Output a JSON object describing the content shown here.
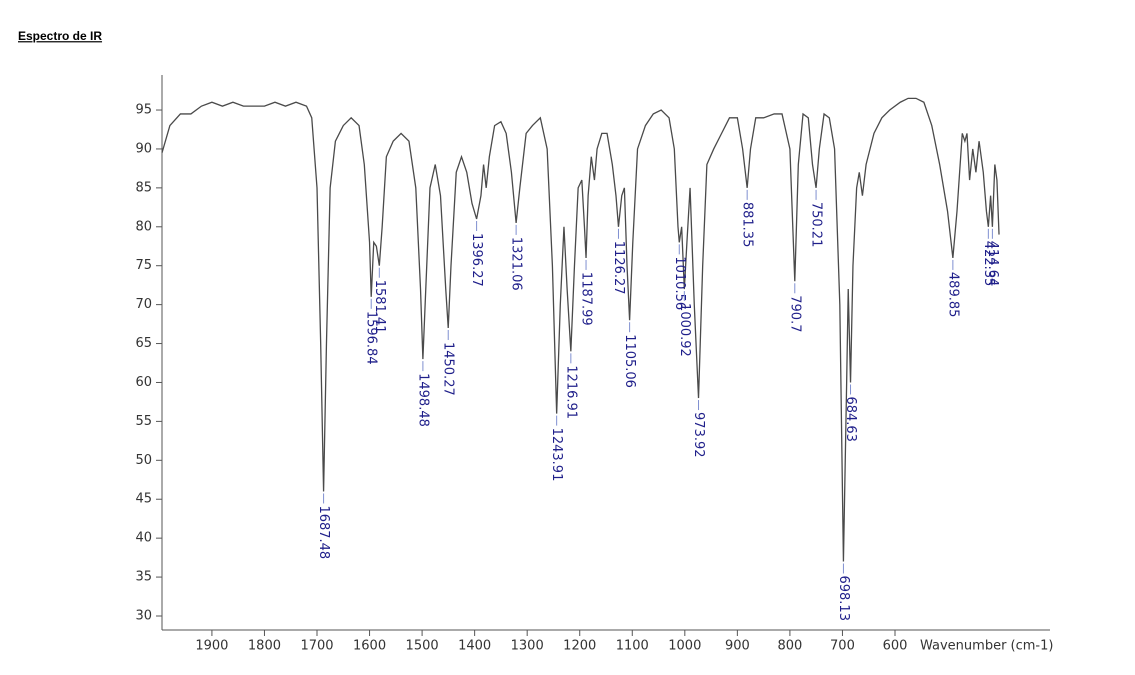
{
  "title": "Espectro de IR",
  "chart_data": {
    "type": "line",
    "xlabel": "Wavenumber (cm-1)",
    "xlim": [
      1995,
      305
    ],
    "ylim": [
      28.2,
      99.5
    ],
    "xticks": [
      1900,
      1800,
      1700,
      1600,
      1500,
      1400,
      1300,
      1200,
      1100,
      1000,
      900,
      800,
      700,
      600
    ],
    "yticks": [
      30,
      35,
      40,
      45,
      50,
      55,
      60,
      65,
      70,
      75,
      80,
      85,
      90,
      95
    ],
    "x": [
      1995,
      1980,
      1960,
      1940,
      1920,
      1900,
      1880,
      1860,
      1840,
      1820,
      1800,
      1780,
      1760,
      1740,
      1720,
      1710,
      1700,
      1693,
      1687.48,
      1682,
      1675,
      1665,
      1650,
      1635,
      1620,
      1610,
      1600,
      1596.84,
      1592,
      1587,
      1581.41,
      1576,
      1568,
      1555,
      1540,
      1525,
      1512,
      1503,
      1498.48,
      1493,
      1485,
      1475,
      1465,
      1455,
      1450.27,
      1445,
      1435,
      1425,
      1415,
      1405,
      1396.27,
      1388,
      1383,
      1378,
      1372,
      1362,
      1350,
      1340,
      1330,
      1321.06,
      1314,
      1302,
      1290,
      1275,
      1262,
      1252,
      1243.91,
      1237,
      1230,
      1224,
      1216.91,
      1210,
      1203,
      1196,
      1191,
      1187.99,
      1184,
      1178,
      1172,
      1167,
      1158,
      1148,
      1138,
      1131,
      1126.27,
      1120,
      1115,
      1110,
      1105.06,
      1099,
      1090,
      1075,
      1060,
      1045,
      1030,
      1020,
      1013,
      1010.56,
      1006,
      1000.92,
      996,
      990,
      982,
      973.92,
      966,
      958,
      945,
      930,
      915,
      900,
      890,
      881.35,
      875,
      865,
      850,
      830,
      815,
      800,
      790.7,
      784,
      775,
      765,
      757,
      750.21,
      744,
      735,
      725,
      715,
      705,
      698.13,
      692,
      689,
      684.63,
      680,
      673,
      668,
      662,
      655,
      640,
      625,
      610,
      590,
      575,
      560,
      545,
      530,
      515,
      500,
      489.85,
      482,
      472,
      467,
      463,
      458,
      452,
      446,
      440,
      432,
      426,
      422.35,
      418,
      414.64,
      410,
      406,
      402
    ],
    "series": [
      {
        "color": "#4a4a4a",
        "values": [
          89.5,
          93,
          94.5,
          94.5,
          95.5,
          96,
          95.5,
          96,
          95.5,
          95.5,
          95.5,
          96,
          95.5,
          96,
          95.5,
          94,
          85,
          65,
          46,
          65,
          85,
          91,
          93,
          94,
          93,
          88,
          78,
          71,
          78,
          77.5,
          75,
          80,
          89,
          91,
          92,
          91,
          85,
          72,
          63,
          72,
          85,
          88,
          84,
          72,
          67,
          75,
          87,
          89,
          87,
          83,
          81,
          84,
          88,
          85,
          89,
          93,
          93.5,
          92,
          87,
          80.5,
          85,
          92,
          93,
          94,
          90,
          75,
          56,
          70,
          80,
          72,
          64,
          75,
          85,
          86,
          80,
          76,
          84,
          89,
          86,
          90,
          92,
          92,
          88,
          84,
          80,
          84,
          85,
          75,
          68,
          78,
          90,
          93,
          94.5,
          95,
          94,
          90,
          80,
          78,
          80,
          72,
          78,
          85,
          70,
          58,
          75,
          88,
          90,
          92,
          94,
          94,
          90,
          85,
          90,
          94,
          94,
          94.5,
          94.5,
          90,
          73,
          88,
          94.5,
          94,
          88,
          85,
          90,
          94.5,
          94,
          90,
          70,
          37,
          60,
          72,
          60,
          75,
          85,
          87,
          84,
          88,
          92,
          94,
          95,
          96,
          96.5,
          96.5,
          96,
          93,
          88,
          82,
          76,
          82,
          92,
          91,
          92,
          86,
          90,
          87,
          91,
          87,
          82,
          80,
          84,
          80,
          88,
          86,
          79
        ]
      }
    ],
    "peaks": [
      {
        "x": 1687.48,
        "y": 46
      },
      {
        "x": 1596.84,
        "y": 71
      },
      {
        "x": 1581.41,
        "y": 75
      },
      {
        "x": 1498.48,
        "y": 63
      },
      {
        "x": 1450.27,
        "y": 67
      },
      {
        "x": 1396.27,
        "y": 81
      },
      {
        "x": 1321.06,
        "y": 80.5
      },
      {
        "x": 1243.91,
        "y": 56
      },
      {
        "x": 1216.91,
        "y": 64
      },
      {
        "x": 1187.99,
        "y": 76
      },
      {
        "x": 1126.27,
        "y": 80
      },
      {
        "x": 1105.06,
        "y": 68
      },
      {
        "x": 1010.56,
        "y": 78
      },
      {
        "x": 1000.92,
        "y": 72
      },
      {
        "x": 973.92,
        "y": 58
      },
      {
        "x": 881.35,
        "y": 85
      },
      {
        "x": 790.7,
        "y": 73
      },
      {
        "x": 750.21,
        "y": 85
      },
      {
        "x": 698.13,
        "y": 37
      },
      {
        "x": 684.63,
        "y": 60
      },
      {
        "x": 489.85,
        "y": 76
      },
      {
        "x": 422.35,
        "y": 80
      },
      {
        "x": 414.64,
        "y": 80
      }
    ]
  }
}
